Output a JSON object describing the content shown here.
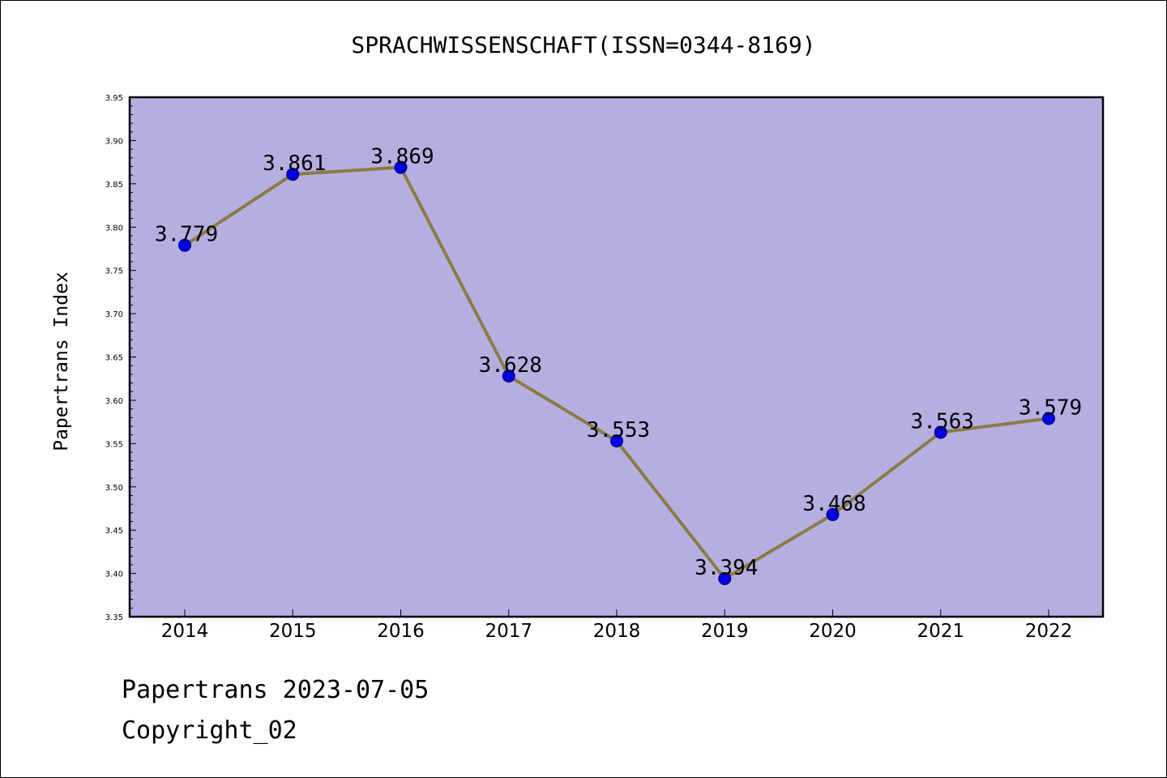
{
  "title": "SPRACHWISSENSCHAFT(ISSN=0344-8169)",
  "footer": {
    "date_line": "Papertrans 2023-07-05",
    "copyright_line": "Copyright_02"
  },
  "colors": {
    "plot_background": "#b5afe1",
    "line": "#8b7d3a",
    "marker": "#0000ee",
    "marker_edge": "#00006a",
    "axis": "#000000"
  },
  "chart_data": {
    "type": "line",
    "title": "SPRACHWISSENSCHAFT(ISSN=0344-8169)",
    "xlabel": "",
    "ylabel": "Papertrans Index",
    "categories": [
      "2014",
      "2015",
      "2016",
      "2017",
      "2018",
      "2019",
      "2020",
      "2021",
      "2022"
    ],
    "series": [
      {
        "values": [
          3.779,
          3.861,
          3.869,
          3.628,
          3.553,
          3.394,
          3.468,
          3.563,
          3.579
        ],
        "data_labels": [
          "3.779",
          "3.861",
          "3.869",
          "3.628",
          "3.553",
          "3.394",
          "3.468",
          "3.563",
          "3.579"
        ]
      }
    ],
    "ylim": [
      3.35,
      3.95
    ],
    "yticks": [
      "3.35",
      "3.40",
      "3.45",
      "3.50",
      "3.55",
      "3.60",
      "3.65",
      "3.70",
      "3.75",
      "3.80",
      "3.85",
      "3.90",
      "3.95"
    ],
    "grid": false,
    "legend": "none"
  }
}
